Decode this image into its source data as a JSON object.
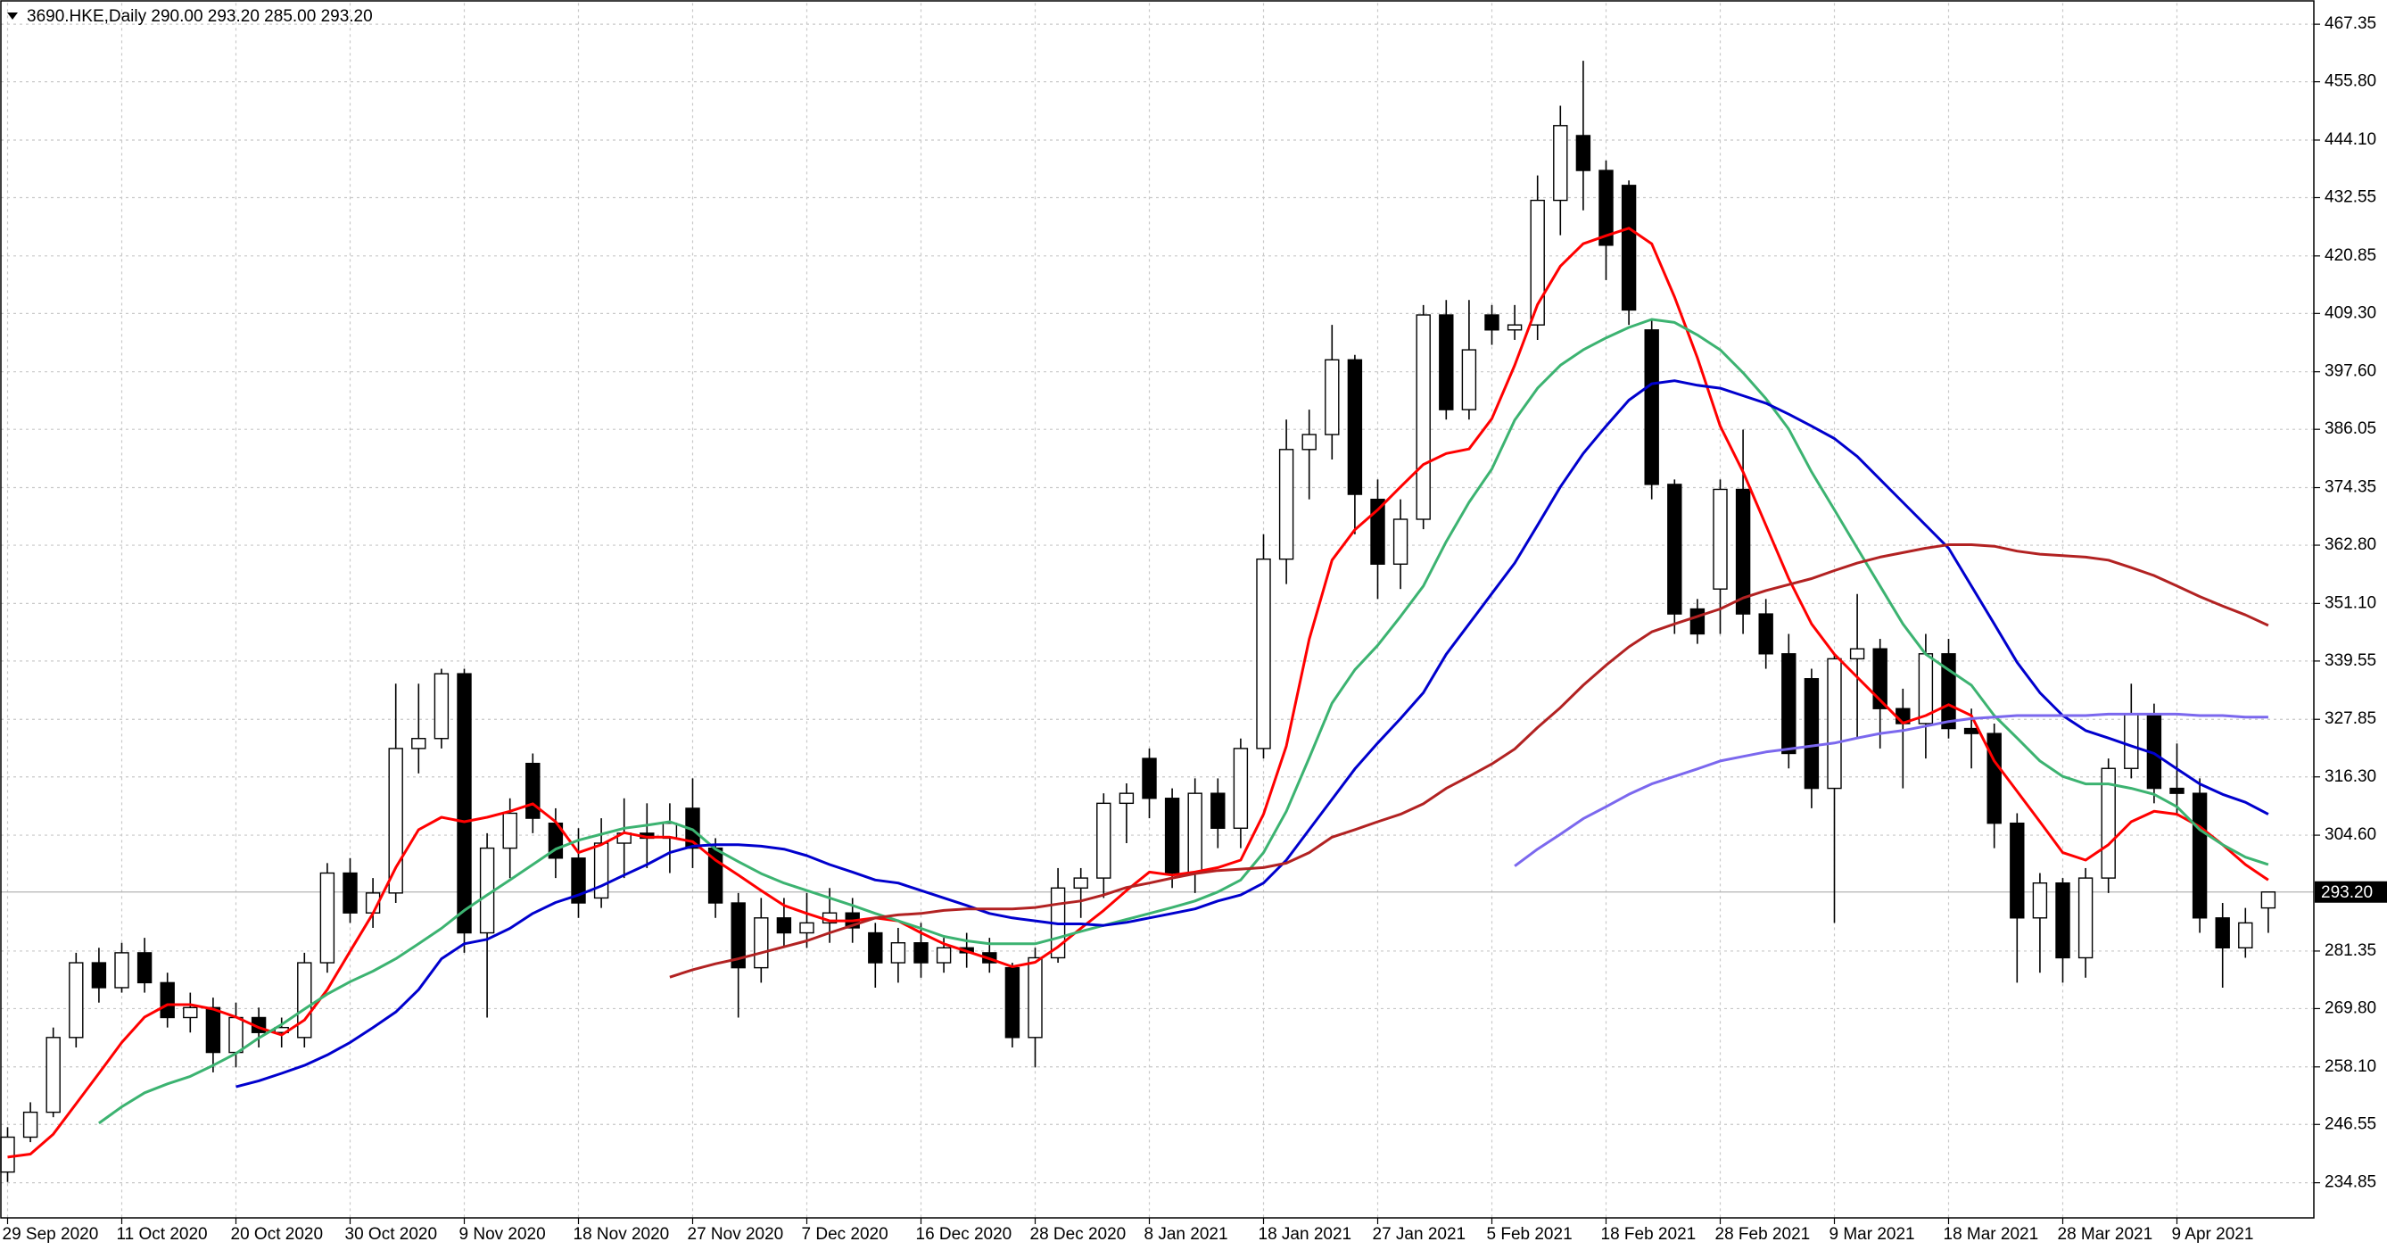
{
  "chart_data": {
    "type": "candlestick",
    "title": "3690.HKE,Daily  290.00 293.20 285.00 293.20",
    "categories": [
      "29 Sep 2020",
      null,
      null,
      null,
      null,
      "11 Oct 2020",
      null,
      null,
      null,
      null,
      "20 Oct 2020",
      null,
      null,
      null,
      null,
      "30 Oct 2020",
      null,
      null,
      null,
      null,
      "9 Nov 2020",
      null,
      null,
      null,
      null,
      "18 Nov 2020",
      null,
      null,
      null,
      null,
      "27 Nov 2020",
      null,
      null,
      null,
      null,
      "7 Dec 2020",
      null,
      null,
      null,
      null,
      "16 Dec 2020",
      null,
      null,
      null,
      null,
      "28 Dec 2020",
      null,
      null,
      null,
      null,
      "8 Jan 2021",
      null,
      null,
      null,
      null,
      "18 Jan 2021",
      null,
      null,
      null,
      null,
      "27 Jan 2021",
      null,
      null,
      null,
      null,
      "5 Feb 2021",
      null,
      null,
      null,
      null,
      "18 Feb 2021",
      null,
      null,
      null,
      null,
      "28 Feb 2021",
      null,
      null,
      null,
      null,
      "9 Mar 2021",
      null,
      null,
      null,
      null,
      "18 Mar 2021",
      null,
      null,
      null,
      null,
      "28 Mar 2021",
      null,
      null,
      null,
      null,
      "9 Apr 2021",
      null,
      null,
      null,
      null
    ],
    "open": [
      237,
      244,
      249,
      264,
      279,
      274,
      281,
      275,
      268,
      270,
      261,
      268,
      265,
      264,
      279,
      297,
      289,
      293,
      322,
      324,
      337,
      285,
      302,
      319,
      307,
      300,
      292,
      303,
      305,
      304,
      310,
      302,
      291,
      278,
      288,
      285,
      287,
      289,
      285,
      279,
      283,
      279,
      282,
      281,
      278,
      264,
      280,
      294,
      296,
      311,
      320,
      312,
      297,
      313,
      306,
      322,
      360,
      382,
      385,
      400,
      372,
      359,
      368,
      409,
      390,
      409,
      406,
      407,
      432,
      445,
      438,
      435,
      406,
      375,
      350,
      354,
      374,
      349,
      341,
      336,
      314,
      340,
      342,
      330,
      327,
      341,
      326,
      325,
      307,
      288,
      295,
      280,
      296,
      318,
      329,
      314,
      313,
      288,
      282,
      290
    ],
    "high": [
      246,
      251,
      266,
      281,
      282,
      283,
      284,
      277,
      273,
      272,
      271,
      270,
      268,
      281,
      299,
      300,
      296,
      335,
      335,
      338,
      338,
      305,
      312,
      321,
      310,
      306,
      308,
      312,
      311,
      311,
      316,
      304,
      293,
      292,
      292,
      293,
      294,
      292,
      287,
      286,
      287,
      284,
      285,
      284,
      279,
      282,
      298,
      298,
      313,
      315,
      322,
      314,
      316,
      316,
      324,
      365,
      388,
      390,
      407,
      401,
      376,
      372,
      411,
      412,
      412,
      411,
      411,
      437,
      451,
      460,
      440,
      436,
      408,
      376,
      352,
      376,
      386,
      352,
      345,
      338,
      341,
      353,
      344,
      334,
      345,
      344,
      330,
      327,
      309,
      297,
      296,
      298,
      320,
      335,
      331,
      323,
      316,
      291,
      290,
      293.2
    ],
    "low": [
      235,
      243,
      248,
      262,
      271,
      273,
      273,
      266,
      265,
      257,
      258,
      262,
      262,
      262,
      277,
      287,
      286,
      291,
      317,
      322,
      281,
      268,
      296,
      305,
      296,
      288,
      290,
      296,
      298,
      297,
      298,
      288,
      268,
      275,
      282,
      282,
      283,
      283,
      274,
      275,
      276,
      277,
      278,
      277,
      262,
      258,
      279,
      288,
      292,
      303,
      308,
      294,
      293,
      302,
      302,
      320,
      355,
      372,
      380,
      365,
      352,
      354,
      366,
      388,
      388,
      403,
      404,
      404,
      425,
      430,
      416,
      407,
      372,
      345,
      343,
      345,
      345,
      338,
      318,
      310,
      287,
      324,
      322,
      314,
      320,
      324,
      318,
      302,
      275,
      277,
      275,
      276,
      293,
      316,
      311,
      309,
      285,
      274,
      280,
      285
    ],
    "close": [
      244,
      249,
      264,
      279,
      274,
      281,
      275,
      268,
      270,
      261,
      268,
      265,
      266,
      279,
      297,
      289,
      293,
      322,
      324,
      337,
      285,
      302,
      309,
      308,
      300,
      291,
      303,
      305,
      304,
      307,
      302,
      291,
      278,
      288,
      285,
      287,
      289,
      286,
      279,
      283,
      279,
      282,
      281,
      279,
      264,
      280,
      294,
      296,
      311,
      313,
      312,
      297,
      313,
      306,
      322,
      360,
      382,
      385,
      400,
      373,
      359,
      368,
      409,
      390,
      402,
      406,
      407,
      432,
      447,
      438,
      423,
      410,
      375,
      349,
      345,
      374,
      349,
      341,
      321,
      314,
      340,
      342,
      330,
      327,
      341,
      326,
      325,
      307,
      288,
      295,
      280,
      296,
      318,
      329,
      314,
      313,
      288,
      282,
      287,
      293.2
    ],
    "up_color": "#ffffff",
    "down_color": "#000000",
    "wick_color": "#000000",
    "lines": [
      {
        "color": "#ff0000",
        "values": [
          240.0,
          240.6,
          244.6,
          250.7,
          256.8,
          263.0,
          268.1,
          270.6,
          270.6,
          269.7,
          268.1,
          266.0,
          264.5,
          267.5,
          273.6,
          281.3,
          288.9,
          298.1,
          305.7,
          308.2,
          307.3,
          308.2,
          309.4,
          310.9,
          307.3,
          301.1,
          302.7,
          305.1,
          304.2,
          304.2,
          303.3,
          299.6,
          296.6,
          293.5,
          290.5,
          288.9,
          287.4,
          287.4,
          288.0,
          287.4,
          285.0,
          282.8,
          281.3,
          279.8,
          278.2,
          279.1,
          282.2,
          285.9,
          289.5,
          293.5,
          297.2,
          296.6,
          297.2,
          298.1,
          299.6,
          308.8,
          322.5,
          343.9,
          359.8,
          365.9,
          369.9,
          374.5,
          379.0,
          381.2,
          382.1,
          388.2,
          398.9,
          411.1,
          418.8,
          423.3,
          424.9,
          426.4,
          423.3,
          412.6,
          400.4,
          386.7,
          377.5,
          366.8,
          356.1,
          347.0,
          340.9,
          336.3,
          331.7,
          327.1,
          328.6,
          330.8,
          328.6,
          319.5,
          313.4,
          307.3,
          301.1,
          299.6,
          302.7,
          307.3,
          309.4,
          308.8,
          306.3,
          302.7,
          298.7,
          295.6
        ]
      },
      {
        "color": "#3cb371",
        "values": [
          null,
          null,
          null,
          null,
          246.8,
          250.1,
          252.9,
          254.7,
          256.2,
          258.4,
          260.8,
          263.9,
          266.6,
          269.7,
          272.7,
          275.2,
          277.3,
          279.8,
          282.8,
          285.9,
          289.5,
          292.6,
          295.6,
          298.7,
          301.8,
          303.6,
          304.8,
          306.0,
          306.6,
          307.3,
          305.7,
          301.8,
          299.3,
          296.9,
          295.0,
          293.5,
          292.0,
          290.5,
          288.9,
          287.4,
          285.9,
          284.3,
          283.4,
          282.8,
          282.8,
          282.8,
          284.0,
          285.3,
          286.5,
          287.7,
          288.9,
          290.1,
          291.4,
          293.2,
          295.6,
          301.1,
          309.4,
          320.1,
          331.1,
          337.8,
          342.7,
          348.5,
          354.6,
          363.5,
          371.4,
          378.1,
          387.9,
          394.3,
          398.9,
          402.0,
          404.4,
          406.5,
          408.1,
          407.5,
          405.0,
          402.0,
          397.4,
          392.2,
          386.1,
          377.5,
          369.9,
          362.2,
          354.6,
          347.0,
          340.9,
          337.8,
          334.7,
          328.6,
          324.1,
          319.5,
          316.4,
          314.9,
          314.9,
          314.0,
          312.8,
          310.3,
          305.7,
          302.7,
          300.2,
          298.7
        ]
      },
      {
        "color": "#0000cd",
        "values": [
          null,
          null,
          null,
          null,
          null,
          null,
          null,
          null,
          null,
          null,
          254.1,
          255.3,
          256.8,
          258.4,
          260.5,
          263.0,
          266.0,
          269.1,
          273.6,
          279.8,
          282.8,
          283.7,
          285.9,
          288.9,
          291.1,
          292.6,
          294.4,
          296.6,
          298.7,
          301.1,
          302.4,
          302.7,
          302.7,
          302.4,
          301.8,
          300.5,
          298.7,
          297.2,
          295.6,
          295.0,
          293.5,
          292.0,
          290.5,
          288.9,
          288.0,
          287.4,
          286.8,
          286.8,
          286.5,
          287.1,
          288.0,
          288.9,
          289.8,
          291.4,
          292.6,
          295.0,
          299.6,
          305.7,
          311.8,
          317.9,
          323.1,
          328.0,
          333.2,
          340.9,
          347.0,
          353.1,
          359.2,
          366.8,
          374.5,
          381.2,
          386.7,
          391.9,
          395.2,
          395.8,
          394.9,
          394.3,
          392.8,
          391.3,
          389.1,
          386.7,
          384.2,
          380.6,
          376.0,
          371.4,
          366.8,
          362.2,
          354.6,
          347.0,
          339.3,
          333.2,
          328.6,
          325.6,
          324.1,
          322.5,
          321.0,
          317.9,
          314.9,
          312.8,
          311.2,
          308.8
        ]
      },
      {
        "color": "#b22222",
        "values": [
          null,
          null,
          null,
          null,
          null,
          null,
          null,
          null,
          null,
          null,
          null,
          null,
          null,
          null,
          null,
          null,
          null,
          null,
          null,
          null,
          null,
          null,
          null,
          null,
          null,
          null,
          null,
          null,
          null,
          276.1,
          277.6,
          278.8,
          279.8,
          281.0,
          282.2,
          283.4,
          285.0,
          286.5,
          288.0,
          288.6,
          288.9,
          289.5,
          289.8,
          289.8,
          289.8,
          290.1,
          290.8,
          291.4,
          292.6,
          294.1,
          295.0,
          296.0,
          296.9,
          297.5,
          297.8,
          298.1,
          299.0,
          301.1,
          304.2,
          305.7,
          307.3,
          308.8,
          310.9,
          314.0,
          316.4,
          318.9,
          321.9,
          326.2,
          330.2,
          334.7,
          338.7,
          342.4,
          345.4,
          347.0,
          348.5,
          350.0,
          352.2,
          353.7,
          354.9,
          356.1,
          357.7,
          359.2,
          360.4,
          361.3,
          362.2,
          362.9,
          362.9,
          362.6,
          361.6,
          361.0,
          360.7,
          360.4,
          359.8,
          358.3,
          356.7,
          354.6,
          352.5,
          350.6,
          348.8,
          346.7
        ]
      },
      {
        "color": "#7b68ee",
        "values": [
          null,
          null,
          null,
          null,
          null,
          null,
          null,
          null,
          null,
          null,
          null,
          null,
          null,
          null,
          null,
          null,
          null,
          null,
          null,
          null,
          null,
          null,
          null,
          null,
          null,
          null,
          null,
          null,
          null,
          null,
          null,
          null,
          null,
          null,
          null,
          null,
          null,
          null,
          null,
          null,
          null,
          null,
          null,
          null,
          null,
          null,
          null,
          null,
          null,
          null,
          null,
          null,
          null,
          null,
          null,
          null,
          null,
          null,
          null,
          null,
          null,
          null,
          null,
          null,
          null,
          null,
          298.4,
          301.8,
          304.8,
          307.9,
          310.3,
          312.8,
          314.9,
          316.4,
          317.9,
          319.5,
          320.4,
          321.3,
          321.9,
          322.5,
          323.1,
          324.1,
          325.0,
          325.6,
          326.5,
          327.4,
          328.0,
          328.3,
          328.6,
          328.6,
          328.6,
          328.6,
          328.9,
          328.9,
          328.9,
          328.9,
          328.6,
          328.6,
          328.3,
          328.3
        ]
      }
    ],
    "ylim": [
      227.8,
      471.6
    ],
    "yticks": [
      467.35,
      {
        "value": 455.8,
        "label": "455.80"
      },
      {
        "value": 444.1,
        "label": "444.10"
      },
      432.55,
      420.85,
      {
        "value": 409.3,
        "label": "409.30"
      },
      {
        "value": 397.6,
        "label": "397.60"
      },
      386.05,
      374.35,
      {
        "value": 362.8,
        "label": "362.80"
      },
      {
        "value": 351.1,
        "label": "351.10"
      },
      339.55,
      327.85,
      {
        "value": 316.3,
        "label": "316.30"
      },
      {
        "value": 304.6,
        "label": "304.60"
      },
      281.35,
      {
        "value": 269.8,
        "label": "269.80"
      },
      {
        "value": 258.1,
        "label": "258.10"
      },
      246.55,
      234.85
    ],
    "last_price": {
      "value": 293.2,
      "label": "293.20"
    },
    "grid": true
  }
}
